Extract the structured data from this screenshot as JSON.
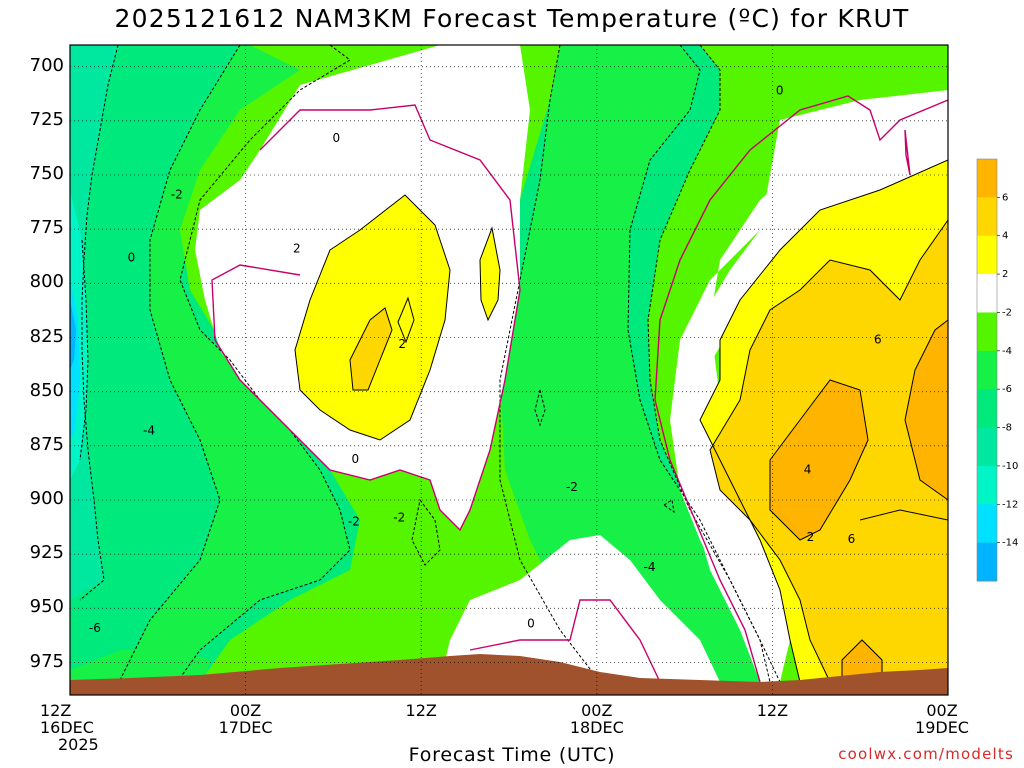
{
  "chart_data": {
    "type": "heatmap",
    "title": "2025121612 NAM3KM Forecast Temperature (ºC) for KRUT",
    "xlabel": "Forecast Time (UTC)",
    "ylabel": "",
    "y_axis": {
      "scale": "pressure (inverted)",
      "ylim": [
        990,
        690
      ],
      "ticks": [
        700,
        725,
        750,
        775,
        800,
        825,
        850,
        875,
        900,
        925,
        950,
        975
      ]
    },
    "x_axis": {
      "xlim": [
        "2025-12-16 12Z",
        "2025-12-19 00Z"
      ],
      "ticks": [
        {
          "hour": 0,
          "lines": [
            "12Z",
            "16DEC",
            "2025"
          ]
        },
        {
          "hour": 12,
          "lines": [
            "00Z",
            "17DEC"
          ]
        },
        {
          "hour": 24,
          "lines": [
            "12Z"
          ]
        },
        {
          "hour": 36,
          "lines": [
            "00Z",
            "18DEC"
          ]
        },
        {
          "hour": 48,
          "lines": [
            "12Z"
          ]
        },
        {
          "hour": 60,
          "lines": [
            "00Z",
            "19DEC"
          ]
        }
      ]
    },
    "grid": true,
    "colorbar": {
      "placement": "right",
      "boundaries": [
        -16,
        -14,
        -12,
        -10,
        -8,
        -6,
        -4,
        -2,
        2,
        4,
        6,
        8
      ],
      "labels": [
        "-14",
        "-12",
        "-10",
        "-8",
        "-6",
        "-4",
        "-2",
        "2",
        "4",
        "6"
      ],
      "colors": [
        "#00b4ff",
        "#00e1ff",
        "#00f5c6",
        "#00e8a0",
        "#00e97d",
        "#17f046",
        "#55f500",
        "#ffffff",
        "#ffff00",
        "#ffd700",
        "#ffb400"
      ]
    },
    "contour_labels": [
      {
        "value": "0",
        "hour": 13.2,
        "p": 733
      },
      {
        "value": "-2",
        "hour": 2.3,
        "p": 759
      },
      {
        "value": "2",
        "hour": 10.5,
        "p": 784
      },
      {
        "value": "0",
        "hour": -0.8,
        "p": 788
      },
      {
        "value": "2",
        "hour": 17.7,
        "p": 828
      },
      {
        "value": "-4",
        "hour": 0.4,
        "p": 868
      },
      {
        "value": "0",
        "hour": 14.5,
        "p": 881
      },
      {
        "value": "-2",
        "hour": 14.4,
        "p": 910
      },
      {
        "value": "-2",
        "hour": 17.5,
        "p": 908
      },
      {
        "value": "-6",
        "hour": -3.3,
        "p": 959
      },
      {
        "value": "0",
        "hour": 26.5,
        "p": 957
      },
      {
        "value": "-2",
        "hour": 29.3,
        "p": 894
      },
      {
        "value": "-4",
        "hour": 34.6,
        "p": 931
      },
      {
        "value": "0",
        "hour": 43.5,
        "p": 711
      },
      {
        "value": "4",
        "hour": 45.4,
        "p": 886
      },
      {
        "value": "2",
        "hour": 45.6,
        "p": 917
      },
      {
        "value": "6",
        "hour": 50.2,
        "p": 826
      },
      {
        "value": "6",
        "hour": 48.4,
        "p": 918
      }
    ]
  },
  "footer": "coolwx.com/modelts"
}
